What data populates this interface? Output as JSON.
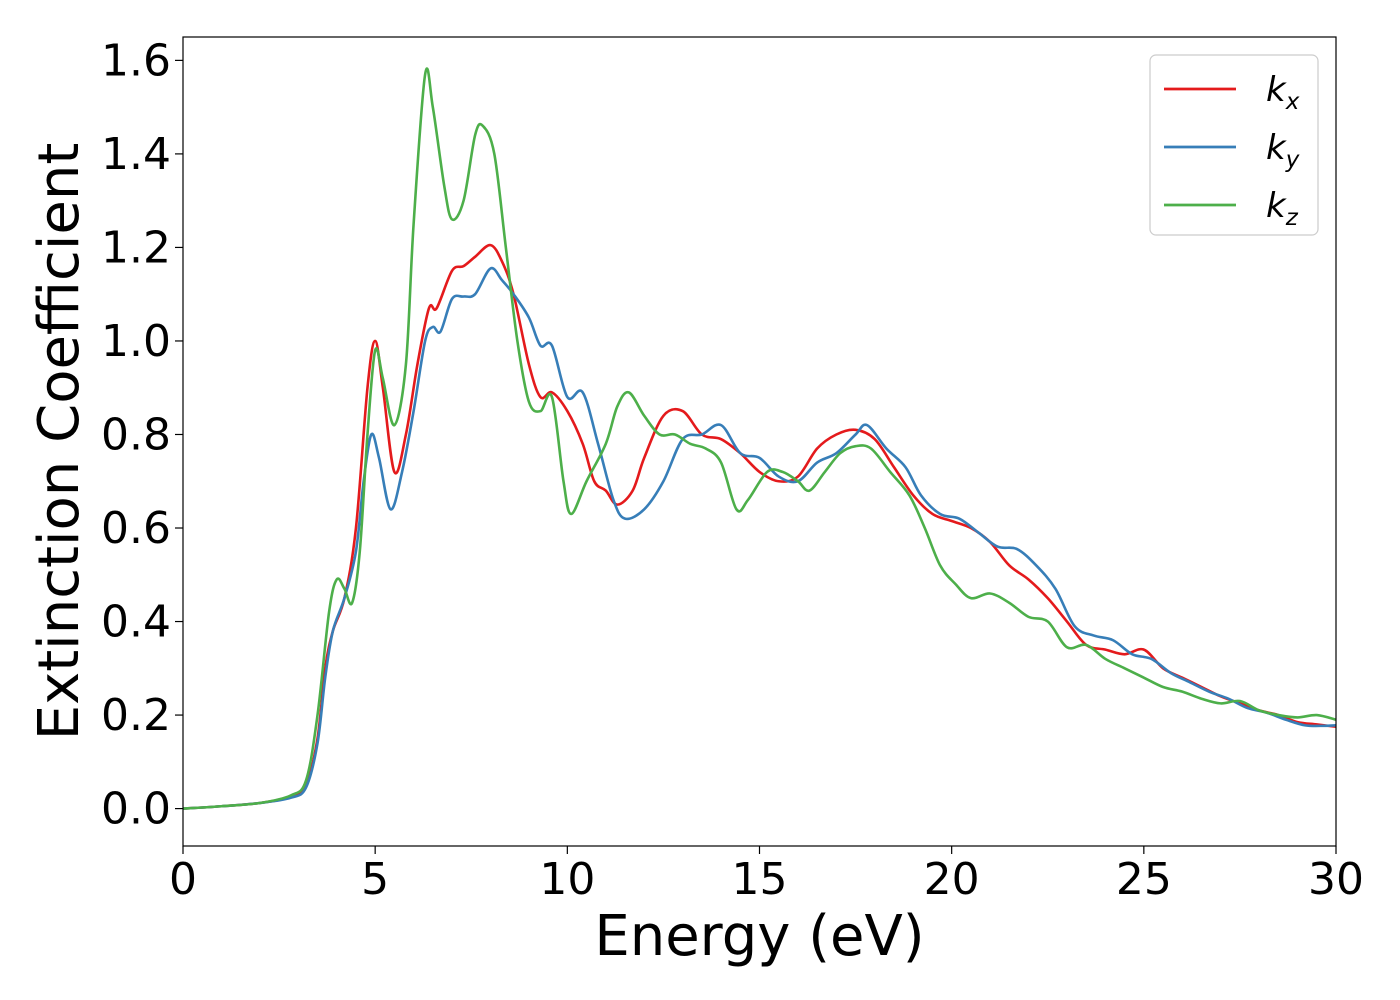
{
  "chart_data": {
    "type": "line",
    "xlabel": "Energy (eV)",
    "ylabel": "Extinction Coefficient",
    "xlim": [
      0,
      30
    ],
    "ylim": [
      -0.08,
      1.65
    ],
    "xticks": [
      0,
      5,
      10,
      15,
      20,
      25,
      30
    ],
    "yticks": [
      0.0,
      0.2,
      0.4,
      0.6,
      0.8,
      1.0,
      1.2,
      1.4,
      1.6
    ],
    "grid": false,
    "legend_position": "top-right",
    "series": [
      {
        "name": "k",
        "subscript": "x",
        "color": "#e41a1c",
        "points": [
          [
            0,
            0
          ],
          [
            1,
            0.005
          ],
          [
            2,
            0.012
          ],
          [
            2.8,
            0.025
          ],
          [
            3.2,
            0.05
          ],
          [
            3.5,
            0.15
          ],
          [
            3.7,
            0.3
          ],
          [
            3.9,
            0.38
          ],
          [
            4.2,
            0.45
          ],
          [
            4.5,
            0.6
          ],
          [
            4.8,
            0.9
          ],
          [
            5.0,
            1.0
          ],
          [
            5.2,
            0.9
          ],
          [
            5.5,
            0.72
          ],
          [
            5.8,
            0.8
          ],
          [
            6.1,
            0.95
          ],
          [
            6.4,
            1.07
          ],
          [
            6.6,
            1.07
          ],
          [
            7.0,
            1.15
          ],
          [
            7.3,
            1.16
          ],
          [
            7.6,
            1.18
          ],
          [
            8.0,
            1.205
          ],
          [
            8.3,
            1.17
          ],
          [
            8.6,
            1.1
          ],
          [
            9.0,
            0.95
          ],
          [
            9.3,
            0.88
          ],
          [
            9.6,
            0.89
          ],
          [
            10.0,
            0.85
          ],
          [
            10.4,
            0.78
          ],
          [
            10.7,
            0.7
          ],
          [
            11.0,
            0.68
          ],
          [
            11.3,
            0.65
          ],
          [
            11.7,
            0.68
          ],
          [
            12.0,
            0.75
          ],
          [
            12.5,
            0.84
          ],
          [
            13.0,
            0.85
          ],
          [
            13.5,
            0.8
          ],
          [
            14.0,
            0.79
          ],
          [
            14.5,
            0.76
          ],
          [
            15.0,
            0.72
          ],
          [
            15.5,
            0.7
          ],
          [
            16.0,
            0.71
          ],
          [
            16.5,
            0.77
          ],
          [
            17.0,
            0.8
          ],
          [
            17.5,
            0.81
          ],
          [
            18.0,
            0.79
          ],
          [
            18.5,
            0.73
          ],
          [
            19.0,
            0.67
          ],
          [
            19.5,
            0.63
          ],
          [
            20.0,
            0.615
          ],
          [
            20.5,
            0.6
          ],
          [
            21.0,
            0.57
          ],
          [
            21.5,
            0.52
          ],
          [
            22.0,
            0.49
          ],
          [
            22.5,
            0.45
          ],
          [
            23.0,
            0.4
          ],
          [
            23.5,
            0.35
          ],
          [
            24.0,
            0.34
          ],
          [
            24.5,
            0.33
          ],
          [
            25.0,
            0.34
          ],
          [
            25.5,
            0.3
          ],
          [
            26.0,
            0.28
          ],
          [
            26.5,
            0.26
          ],
          [
            27.0,
            0.24
          ],
          [
            27.5,
            0.225
          ],
          [
            28.0,
            0.21
          ],
          [
            28.5,
            0.2
          ],
          [
            29.0,
            0.185
          ],
          [
            29.5,
            0.18
          ],
          [
            30.0,
            0.175
          ]
        ]
      },
      {
        "name": "k",
        "subscript": "y",
        "color": "#377eb8",
        "points": [
          [
            0,
            0
          ],
          [
            1,
            0.005
          ],
          [
            2,
            0.012
          ],
          [
            2.8,
            0.023
          ],
          [
            3.2,
            0.045
          ],
          [
            3.5,
            0.14
          ],
          [
            3.7,
            0.28
          ],
          [
            3.9,
            0.38
          ],
          [
            4.2,
            0.45
          ],
          [
            4.5,
            0.55
          ],
          [
            4.7,
            0.7
          ],
          [
            4.9,
            0.8
          ],
          [
            5.1,
            0.75
          ],
          [
            5.4,
            0.64
          ],
          [
            5.7,
            0.72
          ],
          [
            6.0,
            0.85
          ],
          [
            6.3,
            1.0
          ],
          [
            6.5,
            1.03
          ],
          [
            6.7,
            1.02
          ],
          [
            7.0,
            1.09
          ],
          [
            7.3,
            1.095
          ],
          [
            7.6,
            1.1
          ],
          [
            8.0,
            1.155
          ],
          [
            8.3,
            1.13
          ],
          [
            8.6,
            1.1
          ],
          [
            9.0,
            1.05
          ],
          [
            9.3,
            0.99
          ],
          [
            9.6,
            0.99
          ],
          [
            10.0,
            0.88
          ],
          [
            10.4,
            0.89
          ],
          [
            10.8,
            0.78
          ],
          [
            11.2,
            0.66
          ],
          [
            11.5,
            0.62
          ],
          [
            12.0,
            0.64
          ],
          [
            12.5,
            0.7
          ],
          [
            13.0,
            0.79
          ],
          [
            13.5,
            0.8
          ],
          [
            14.0,
            0.82
          ],
          [
            14.5,
            0.76
          ],
          [
            15.0,
            0.75
          ],
          [
            15.5,
            0.71
          ],
          [
            16.0,
            0.7
          ],
          [
            16.5,
            0.74
          ],
          [
            17.0,
            0.76
          ],
          [
            17.5,
            0.8
          ],
          [
            17.8,
            0.82
          ],
          [
            18.3,
            0.77
          ],
          [
            18.8,
            0.73
          ],
          [
            19.2,
            0.67
          ],
          [
            19.7,
            0.63
          ],
          [
            20.2,
            0.62
          ],
          [
            20.7,
            0.59
          ],
          [
            21.2,
            0.56
          ],
          [
            21.7,
            0.555
          ],
          [
            22.2,
            0.52
          ],
          [
            22.7,
            0.47
          ],
          [
            23.2,
            0.39
          ],
          [
            23.7,
            0.37
          ],
          [
            24.2,
            0.36
          ],
          [
            24.7,
            0.33
          ],
          [
            25.2,
            0.32
          ],
          [
            25.7,
            0.29
          ],
          [
            26.2,
            0.27
          ],
          [
            26.7,
            0.25
          ],
          [
            27.2,
            0.235
          ],
          [
            27.7,
            0.215
          ],
          [
            28.2,
            0.205
          ],
          [
            28.7,
            0.19
          ],
          [
            29.2,
            0.178
          ],
          [
            29.7,
            0.177
          ],
          [
            30.0,
            0.178
          ]
        ]
      },
      {
        "name": "k",
        "subscript": "z",
        "color": "#4daf4a",
        "points": [
          [
            0,
            0
          ],
          [
            1,
            0.005
          ],
          [
            2,
            0.012
          ],
          [
            2.8,
            0.028
          ],
          [
            3.2,
            0.06
          ],
          [
            3.5,
            0.2
          ],
          [
            3.8,
            0.42
          ],
          [
            4.0,
            0.49
          ],
          [
            4.2,
            0.47
          ],
          [
            4.4,
            0.44
          ],
          [
            4.6,
            0.55
          ],
          [
            4.8,
            0.8
          ],
          [
            5.0,
            0.98
          ],
          [
            5.2,
            0.92
          ],
          [
            5.5,
            0.82
          ],
          [
            5.8,
            0.95
          ],
          [
            6.0,
            1.25
          ],
          [
            6.3,
            1.57
          ],
          [
            6.5,
            1.5
          ],
          [
            6.8,
            1.33
          ],
          [
            7.0,
            1.26
          ],
          [
            7.3,
            1.3
          ],
          [
            7.6,
            1.44
          ],
          [
            7.8,
            1.46
          ],
          [
            8.1,
            1.4
          ],
          [
            8.4,
            1.2
          ],
          [
            8.7,
            1.0
          ],
          [
            9.0,
            0.87
          ],
          [
            9.3,
            0.85
          ],
          [
            9.6,
            0.88
          ],
          [
            9.9,
            0.7
          ],
          [
            10.1,
            0.63
          ],
          [
            10.5,
            0.7
          ],
          [
            11.0,
            0.78
          ],
          [
            11.3,
            0.86
          ],
          [
            11.6,
            0.89
          ],
          [
            12.0,
            0.84
          ],
          [
            12.4,
            0.8
          ],
          [
            12.8,
            0.8
          ],
          [
            13.2,
            0.78
          ],
          [
            13.6,
            0.77
          ],
          [
            14.0,
            0.74
          ],
          [
            14.4,
            0.64
          ],
          [
            14.7,
            0.66
          ],
          [
            15.2,
            0.72
          ],
          [
            15.6,
            0.72
          ],
          [
            16.0,
            0.7
          ],
          [
            16.3,
            0.68
          ],
          [
            16.7,
            0.72
          ],
          [
            17.1,
            0.76
          ],
          [
            17.5,
            0.775
          ],
          [
            17.9,
            0.77
          ],
          [
            18.4,
            0.72
          ],
          [
            18.9,
            0.67
          ],
          [
            19.3,
            0.6
          ],
          [
            19.7,
            0.52
          ],
          [
            20.1,
            0.48
          ],
          [
            20.5,
            0.45
          ],
          [
            21.0,
            0.46
          ],
          [
            21.5,
            0.44
          ],
          [
            22.0,
            0.41
          ],
          [
            22.5,
            0.4
          ],
          [
            23.0,
            0.345
          ],
          [
            23.5,
            0.35
          ],
          [
            24.0,
            0.32
          ],
          [
            24.5,
            0.3
          ],
          [
            25.0,
            0.28
          ],
          [
            25.5,
            0.26
          ],
          [
            26.0,
            0.25
          ],
          [
            26.5,
            0.235
          ],
          [
            27.0,
            0.225
          ],
          [
            27.5,
            0.23
          ],
          [
            28.0,
            0.21
          ],
          [
            28.5,
            0.2
          ],
          [
            29.0,
            0.195
          ],
          [
            29.5,
            0.2
          ],
          [
            30.0,
            0.19
          ]
        ]
      }
    ]
  }
}
